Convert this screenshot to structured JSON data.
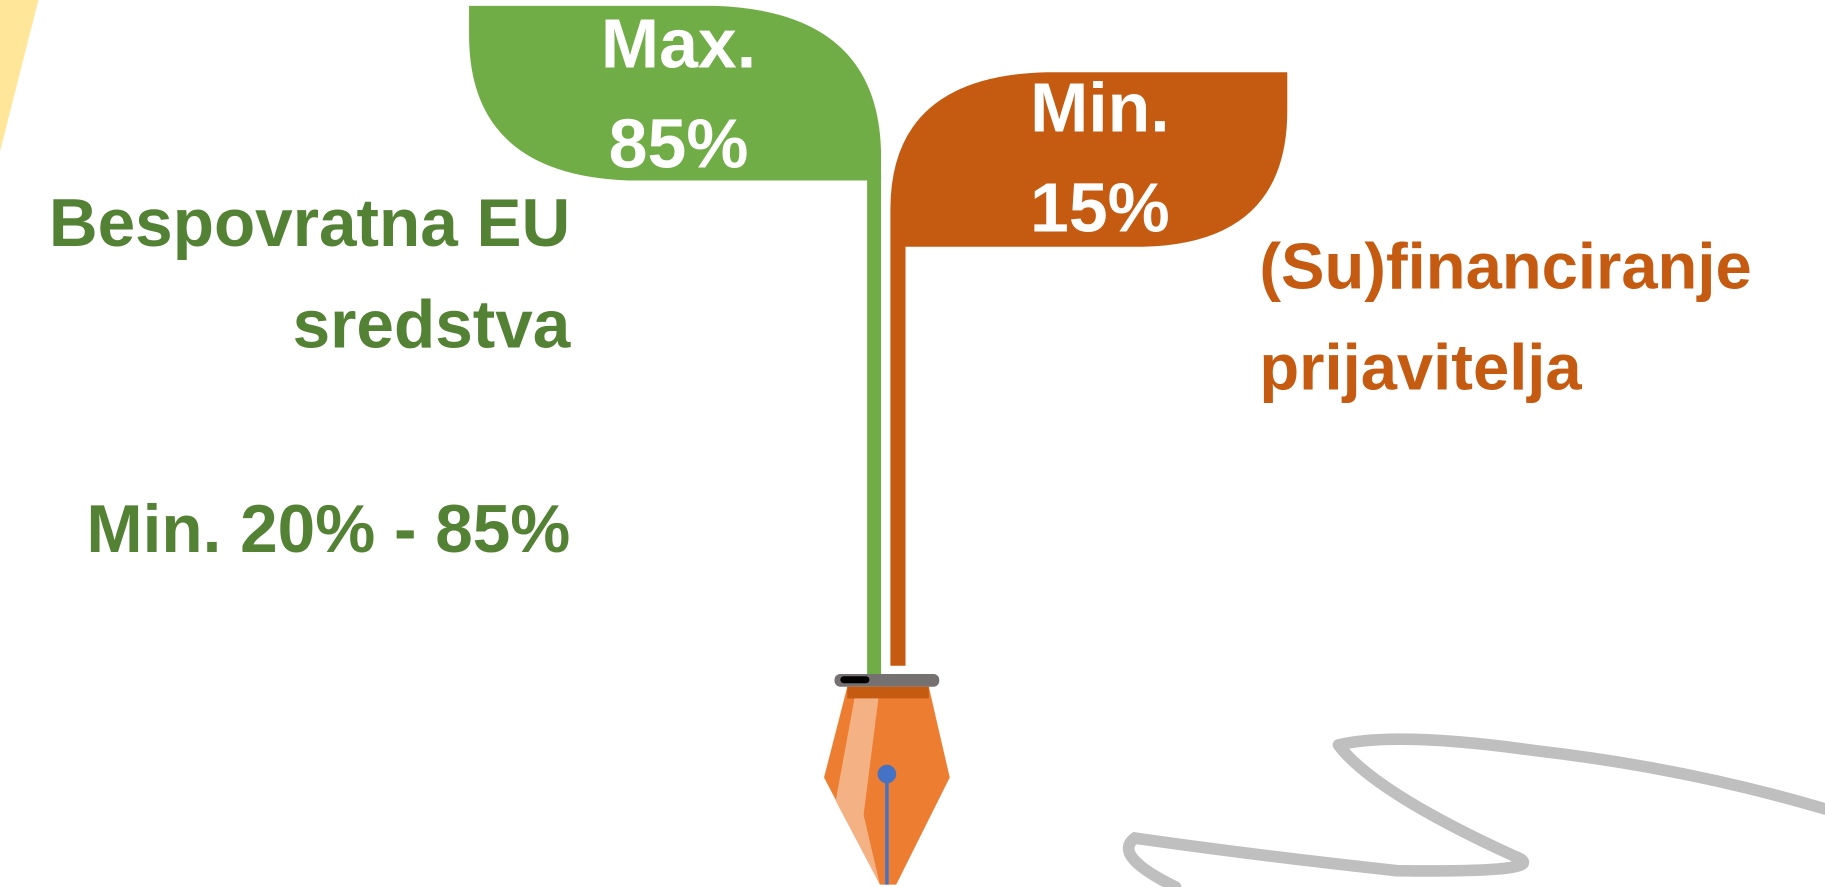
{
  "left": {
    "flag_label": "Max.",
    "flag_value": "85%",
    "title_lines": [
      "Bespovratna EU",
      "sredstva"
    ],
    "range": "Min. 20% - 85%"
  },
  "right": {
    "flag_label": "Min.",
    "flag_value": "15%",
    "title_lines": [
      "(Su)financiranje",
      "prijavitelja"
    ]
  }
}
